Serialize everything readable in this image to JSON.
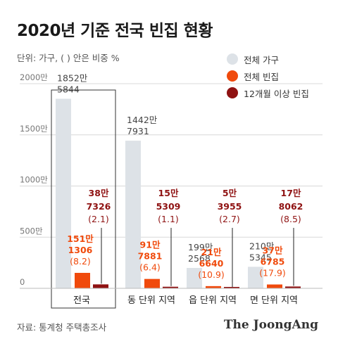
{
  "title": "2020년 기준 전국 빈집 현황",
  "unit_note": "단위: 가구, ( ) 안은 비중 %",
  "source": "자료: 통계청 주택총조사",
  "brand": "The JoongAng",
  "colors": {
    "total": "#dde2e7",
    "vacant": "#f04a0c",
    "long_vacant": "#8f1212",
    "grid": "#d8d8d8",
    "vacant_label": "#f04a0c",
    "long_label": "#8f1212",
    "total_label": "#444444"
  },
  "chart_data": {
    "type": "bar",
    "title": "2020년 기준 전국 빈집 현황",
    "categories": [
      "전국",
      "동 단위 지역",
      "읍 단위 지역",
      "면 단위 지역"
    ],
    "y_ticks": [
      {
        "value": 0,
        "label": "0"
      },
      {
        "value": 500,
        "label": "500만"
      },
      {
        "value": 1000,
        "label": "1000만"
      },
      {
        "value": 1500,
        "label": "1500만"
      },
      {
        "value": 2000,
        "label": "2000만"
      }
    ],
    "ylim": [
      0,
      2000
    ],
    "y_unit": "만 가구",
    "legend_position": "top-right",
    "highlight_category": "전국",
    "series": [
      {
        "name": "전체 가구",
        "key": "total",
        "values": [
          1852.5844,
          1442.7931,
          199.2568,
          210.5345
        ],
        "label_lines": [
          [
            "1852만",
            "5844"
          ],
          [
            "1442만",
            "7931"
          ],
          [
            "199만",
            "2568"
          ],
          [
            "210만",
            "5345"
          ]
        ]
      },
      {
        "name": "전체 빈집",
        "key": "vacant",
        "values": [
          151.1306,
          91.7881,
          21.664,
          37.6785
        ],
        "label_lines": [
          [
            "151만",
            "1306"
          ],
          [
            "91만",
            "7881"
          ],
          [
            "21만",
            "6640"
          ],
          [
            "37만",
            "6785"
          ]
        ],
        "shares": [
          "(8.2)",
          "(6.4)",
          "(10.9)",
          "(17.9)"
        ]
      },
      {
        "name": "12개월 이상 빈집",
        "key": "long_vacant",
        "values": [
          38.7326,
          15.5309,
          5.3955,
          17.8062
        ],
        "label_lines": [
          [
            "38만",
            "7326"
          ],
          [
            "15만",
            "5309"
          ],
          [
            "5만",
            "3955"
          ],
          [
            "17만",
            "8062"
          ]
        ],
        "shares": [
          "(2.1)",
          "(1.1)",
          "(2.7)",
          "(8.5)"
        ]
      }
    ]
  }
}
